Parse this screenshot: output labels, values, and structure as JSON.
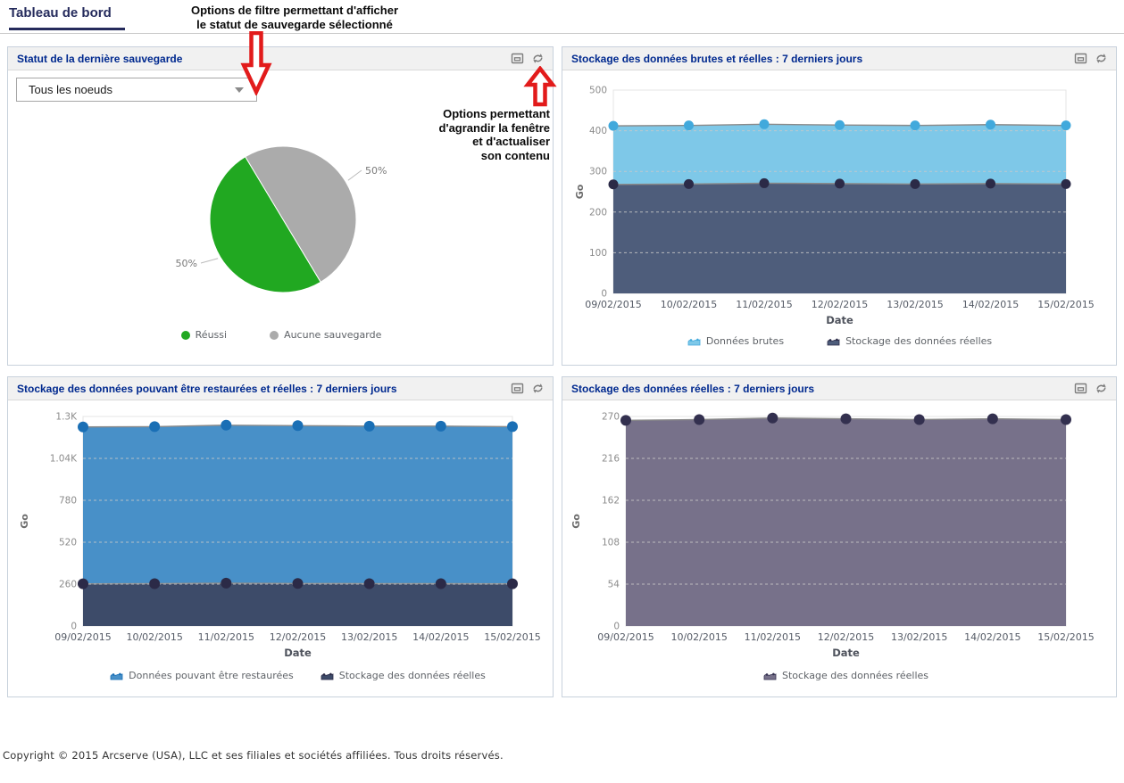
{
  "page": {
    "tab_label": "Tableau de bord",
    "footer": "Copyright © 2015 Arcserve (USA), LLC et ses filiales et sociétés affiliées. Tous droits réservés."
  },
  "annotations": {
    "filter_note": [
      "Options de filtre permettant d'afficher",
      "le statut de sauvegarde sélectionné"
    ],
    "window_note": [
      "Options permettant",
      "d'agrandir la fenêtre",
      "et d'actualiser",
      "son contenu"
    ]
  },
  "panels": {
    "backup_status": {
      "title": "Statut de la dernière sauvegarde",
      "filter_value": "Tous les noeuds"
    },
    "raw_actual": {
      "title": "Stockage des données brutes et réelles : 7 derniers jours"
    },
    "restorable_actual": {
      "title": "Stockage des données pouvant être restaurées et réelles : 7 derniers jours"
    },
    "actual": {
      "title": "Stockage des données réelles : 7 derniers jours"
    }
  },
  "panel_icons": [
    {
      "name": "maximize-icon"
    },
    {
      "name": "refresh-icon"
    }
  ],
  "chart_data": [
    {
      "type": "pie",
      "title": "Statut de la dernière sauvegarde",
      "slices": [
        {
          "label": "Réussi",
          "value": 50,
          "display": "50%",
          "color": "#21A821"
        },
        {
          "label": "Aucune sauvegarde",
          "value": 50,
          "display": "50%",
          "color": "#ABABAB"
        }
      ],
      "start_angle_deg": 149,
      "legend_position": "bottom"
    },
    {
      "type": "area",
      "title": "Stockage des données brutes et réelles : 7 derniers jours",
      "categories": [
        "09/02/2015",
        "10/02/2015",
        "11/02/2015",
        "12/02/2015",
        "13/02/2015",
        "14/02/2015",
        "15/02/2015"
      ],
      "xlabel": "Date",
      "ylabel": "Go",
      "ylim": [
        0,
        500
      ],
      "yticks": [
        0,
        100,
        200,
        300,
        400,
        500
      ],
      "ytick_labels": [
        "0",
        "100",
        "200",
        "300",
        "400",
        "500"
      ],
      "grid": "dashed",
      "legend_position": "bottom",
      "series": [
        {
          "name": "Données brutes",
          "values": [
            412,
            413,
            416,
            414,
            413,
            415,
            413
          ],
          "fill": "#7EC8E8",
          "dot": "#41A9DC"
        },
        {
          "name": "Stockage des données réelles",
          "values": [
            268,
            269,
            271,
            270,
            269,
            270,
            269
          ],
          "fill": "#4E5D7B",
          "dot": "#2B2A47"
        }
      ]
    },
    {
      "type": "area",
      "title": "Stockage des données pouvant être restaurées et réelles : 7 derniers jours",
      "categories": [
        "09/02/2015",
        "10/02/2015",
        "11/02/2015",
        "12/02/2015",
        "13/02/2015",
        "14/02/2015",
        "15/02/2015"
      ],
      "xlabel": "Date",
      "ylabel": "Go",
      "ylim": [
        0,
        1300
      ],
      "yticks": [
        0,
        260,
        520,
        780,
        1040,
        1300
      ],
      "ytick_labels": [
        "0",
        "260",
        "520",
        "780",
        "1.04K",
        "1.3K"
      ],
      "grid": "dashed",
      "legend_position": "bottom",
      "series": [
        {
          "name": "Données pouvant être restaurées",
          "values": [
            1235,
            1237,
            1246,
            1243,
            1240,
            1240,
            1237
          ],
          "fill": "#4890C8",
          "dot": "#1A6FB5"
        },
        {
          "name": "Stockage des données réelles",
          "values": [
            262,
            263,
            266,
            264,
            263,
            263,
            262
          ],
          "fill": "#3D4B69",
          "dot": "#2B2A47"
        }
      ]
    },
    {
      "type": "area",
      "title": "Stockage des données réelles : 7 derniers jours",
      "categories": [
        "09/02/2015",
        "10/02/2015",
        "11/02/2015",
        "12/02/2015",
        "13/02/2015",
        "14/02/2015",
        "15/02/2015"
      ],
      "xlabel": "Date",
      "ylabel": "Go",
      "ylim": [
        0,
        270
      ],
      "yticks": [
        0,
        54,
        108,
        162,
        216,
        270
      ],
      "ytick_labels": [
        "0",
        "54",
        "108",
        "162",
        "216",
        "270"
      ],
      "grid": "dashed",
      "legend_position": "bottom",
      "series": [
        {
          "name": "Stockage des données réelles",
          "values": [
            265,
            266,
            268,
            267,
            266,
            267,
            266
          ],
          "fill": "#77718A",
          "dot": "#33304F"
        }
      ]
    }
  ],
  "colors": {
    "tab_text": "#252B5C",
    "panel_title": "#00298F",
    "panel_border": "#C8D1DC",
    "panel_header_bg": "#F1F1F1",
    "annotation_arrow": "#E21B1B",
    "grid_line": "#C9C9C9",
    "series_top_line": "#8A8A8A",
    "tick_label": "#8C8C8C",
    "date_label": "#555B66"
  }
}
